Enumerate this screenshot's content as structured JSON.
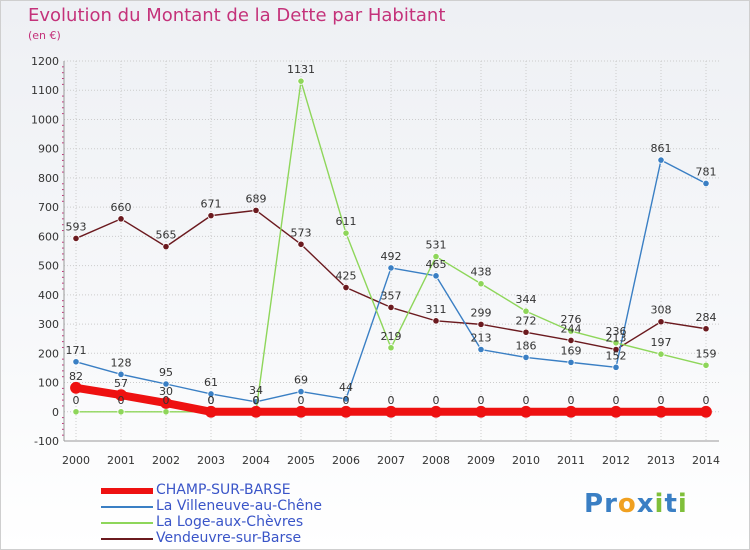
{
  "header": {
    "title": "Evolution du Montant de la Dette par Habitant",
    "subtitle": "(en €)"
  },
  "logo": {
    "text": "Proxiti",
    "letters": [
      "P",
      "r",
      "o",
      "x",
      "i",
      "t",
      "i"
    ],
    "colors": [
      "#3a7fc4",
      "#3a7fc4",
      "#f0a020",
      "#3a7fc4",
      "#7fbf3a",
      "#3a7fc4",
      "#7fbf3a"
    ]
  },
  "chart_data": {
    "type": "line",
    "title": "Evolution du Montant de la Dette par Habitant",
    "ylabel": "(en €)",
    "xlabel": "",
    "ylim": [
      -100,
      1200
    ],
    "y_ticks": [
      -100,
      0,
      100,
      200,
      300,
      400,
      500,
      600,
      700,
      800,
      900,
      1000,
      1100,
      1200
    ],
    "x": [
      2000,
      2001,
      2002,
      2003,
      2004,
      2005,
      2006,
      2007,
      2008,
      2009,
      2010,
      2011,
      2012,
      2013,
      2014
    ],
    "grid": true,
    "legend": "bottom-left",
    "series": [
      {
        "name": "Vendeuvre-sur-Barse",
        "color": "#6b1a1f",
        "values": [
          593,
          660,
          565,
          671,
          689,
          573,
          425,
          357,
          311,
          299,
          272,
          244,
          213,
          308,
          284
        ],
        "labels": [
          "593",
          "660",
          "565",
          "671",
          "689",
          "573",
          "425",
          "357",
          "311",
          "299",
          "272",
          "244",
          "213",
          "308",
          "284"
        ]
      },
      {
        "name": "La Villeneuve-au-Chêne",
        "color": "#3a7fc4",
        "values": [
          171,
          128,
          95,
          61,
          34,
          69,
          44,
          492,
          465,
          213,
          186,
          169,
          152,
          861,
          781
        ],
        "labels": [
          "171",
          "128",
          "95",
          "61",
          "34",
          "69",
          "44",
          "492",
          "465",
          "213",
          "186",
          "169",
          "152",
          "861",
          "781"
        ]
      },
      {
        "name": "La Loge-aux-Chèvres",
        "color": "#8ed65a",
        "values": [
          0,
          0,
          0,
          0,
          0,
          1131,
          611,
          219,
          531,
          438,
          344,
          276,
          236,
          197,
          159
        ],
        "labels": [
          "0",
          "0",
          "0",
          "0",
          "0",
          "1131",
          "611",
          "219",
          "531",
          "438",
          "344",
          "276",
          "236",
          "197",
          "159"
        ]
      },
      {
        "name": "CHAMP-SUR-BARSE",
        "color": "#ee1111",
        "values": [
          82,
          57,
          30,
          0,
          0,
          0,
          0,
          0,
          0,
          0,
          0,
          0,
          0,
          0,
          0
        ],
        "labels": [
          "82",
          "57",
          "30",
          "0",
          "0",
          "0",
          "0",
          "0",
          "0",
          "0",
          "0",
          "0",
          "0",
          "0",
          "0"
        ]
      }
    ]
  }
}
